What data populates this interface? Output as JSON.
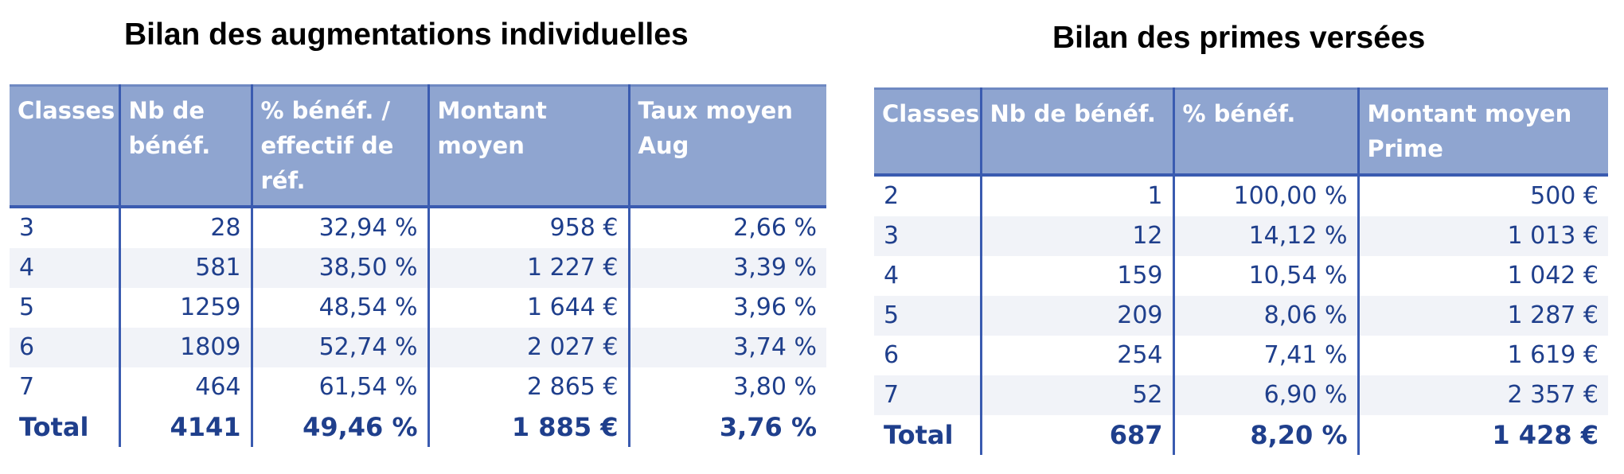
{
  "left": {
    "title": "Bilan des augmentations individuelles",
    "headers": [
      "Classes",
      "Nb de bénéf.",
      "% bénéf. / effectif de réf.",
      "Montant moyen",
      "Taux moyen Aug"
    ],
    "rows": [
      [
        "3",
        "28",
        "32,94 %",
        "958 €",
        "2,66 %"
      ],
      [
        "4",
        "581",
        "38,50 %",
        "1 227 €",
        "3,39 %"
      ],
      [
        "5",
        "1259",
        "48,54 %",
        "1 644 €",
        "3,96 %"
      ],
      [
        "6",
        "1809",
        "52,74 %",
        "2 027 €",
        "3,74 %"
      ],
      [
        "7",
        "464",
        "61,54 %",
        "2 865 €",
        "3,80 %"
      ]
    ],
    "total": [
      "Total",
      "4141",
      "49,46 %",
      "1 885 €",
      "3,76 %"
    ]
  },
  "right": {
    "title": "Bilan des primes versées",
    "headers": [
      "Classes",
      "Nb de bénéf.",
      "% bénéf.",
      "Montant moyen Prime"
    ],
    "rows": [
      [
        "2",
        "1",
        "100,00 %",
        "500 €"
      ],
      [
        "3",
        "12",
        "14,12 %",
        "1 013 €"
      ],
      [
        "4",
        "159",
        "10,54 %",
        "1 042 €"
      ],
      [
        "5",
        "209",
        "8,06 %",
        "1 287 €"
      ],
      [
        "6",
        "254",
        "7,41 %",
        "1 619 €"
      ],
      [
        "7",
        "52",
        "6,90 %",
        "2 357 €"
      ]
    ],
    "total": [
      "Total",
      "687",
      "8,20 %",
      "1 428 €"
    ]
  }
}
